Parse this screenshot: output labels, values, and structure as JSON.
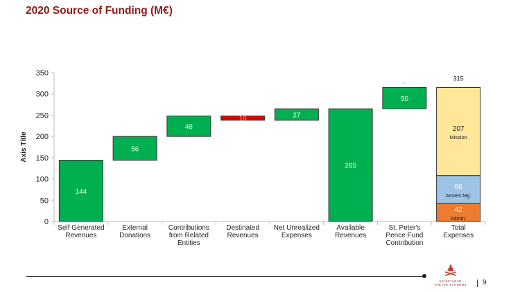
{
  "title": "2020 Source of Funding (M€)",
  "chart_data": {
    "type": "waterfall",
    "ylabel": "Axis Title",
    "ylim": [
      0,
      350
    ],
    "yticks": [
      0,
      50,
      100,
      150,
      200,
      250,
      300,
      350
    ],
    "grid": false,
    "categories": [
      "Self Generated Revenues",
      "External Donations",
      "Contributions from Related Entities",
      "Destinated Revenues",
      "Net Unrealized Expenses",
      "Available Revenues",
      "St. Peter's Pence Fund Contribution",
      "Total Expenses"
    ],
    "category_lines": [
      [
        "Self Generated",
        "Revenues"
      ],
      [
        "External",
        "Donations"
      ],
      [
        "Contributions",
        "from Related",
        "Entities"
      ],
      [
        "Destinated",
        "Revenues"
      ],
      [
        "Net Unrealized",
        "Expenses"
      ],
      [
        "Available",
        "Revenues"
      ],
      [
        "St. Peter's",
        "Pence Fund",
        "Contribution"
      ],
      [
        "Total",
        "Expenses"
      ]
    ],
    "bars": [
      {
        "base": 0,
        "top": 144,
        "label": "144",
        "color": "#00b050"
      },
      {
        "base": 144,
        "top": 200,
        "label": "56",
        "color": "#00b050"
      },
      {
        "base": 200,
        "top": 248,
        "label": "48",
        "color": "#00b050"
      },
      {
        "base": 238,
        "top": 248,
        "label": "10",
        "color": "#e00000"
      },
      {
        "base": 238,
        "top": 265,
        "label": "27",
        "color": "#00b050"
      },
      {
        "base": 0,
        "top": 265,
        "label": "265",
        "color": "#00b050"
      },
      {
        "base": 265,
        "top": 315,
        "label": "50",
        "color": "#00b050",
        "above": "..."
      }
    ],
    "stacked_total": {
      "total_label": "315",
      "segments": [
        {
          "value": 42,
          "label": "42",
          "name": "Admin.",
          "color": "#ed7d31"
        },
        {
          "value": 66,
          "label": "66",
          "name": "Assets Mg.",
          "color": "#9dc3e6"
        },
        {
          "value": 207,
          "label": "207",
          "name": "Mission",
          "color": "#ffe699"
        }
      ]
    }
  },
  "footer": {
    "logo_text": [
      "SECRETARIAT",
      "FOR THE ECONOMY"
    ],
    "page_number": "9"
  }
}
